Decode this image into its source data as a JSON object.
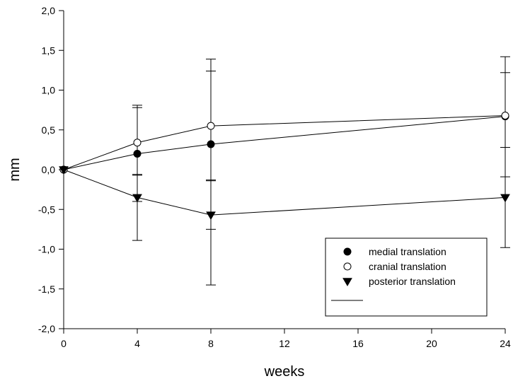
{
  "chart_data": {
    "type": "line",
    "xlabel": "weeks",
    "ylabel": "mm",
    "xlim": [
      0,
      24
    ],
    "ylim": [
      -2.0,
      2.0
    ],
    "x_ticks": [
      0,
      4,
      8,
      12,
      16,
      20,
      24
    ],
    "y_ticks": [
      2.0,
      1.5,
      1.0,
      0.5,
      0.0,
      -0.5,
      -1.0,
      -1.5,
      -2.0
    ],
    "x_tick_labels": [
      "0",
      "4",
      "8",
      "12",
      "16",
      "20",
      "24"
    ],
    "y_tick_labels": [
      "2,0",
      "1,5",
      "1,0",
      "0,5",
      "0,0",
      "-0,5",
      "-1,0",
      "-1,5",
      "-2,0"
    ],
    "grid": false,
    "legend_position": "bottom-right",
    "series": [
      {
        "name": "medial translation",
        "marker": "filled-circle",
        "x": [
          0,
          4,
          8,
          24
        ],
        "y": [
          0.0,
          0.2,
          0.32,
          0.67
        ],
        "err_lower": [
          0.0,
          0.27,
          0.46,
          0.39
        ],
        "err_upper": [
          0.0,
          0.58,
          0.92,
          0.55
        ]
      },
      {
        "name": "cranial translation",
        "marker": "open-circle",
        "x": [
          0,
          4,
          8,
          24
        ],
        "y": [
          0.0,
          0.34,
          0.55,
          0.68
        ],
        "err_lower": [
          0.0,
          0.74,
          1.3,
          0.77
        ],
        "err_upper": [
          0.0,
          0.47,
          0.84,
          0.74
        ]
      },
      {
        "name": "posterior translation",
        "marker": "filled-triangle-down",
        "x": [
          0,
          4,
          8,
          24
        ],
        "y": [
          0.0,
          -0.35,
          -0.57,
          -0.35
        ],
        "err_lower": [
          0.0,
          0.54,
          0.88,
          0.63
        ],
        "err_upper": [
          0.0,
          0.29,
          0.44,
          0.63
        ]
      }
    ],
    "legend_line_label": ""
  }
}
